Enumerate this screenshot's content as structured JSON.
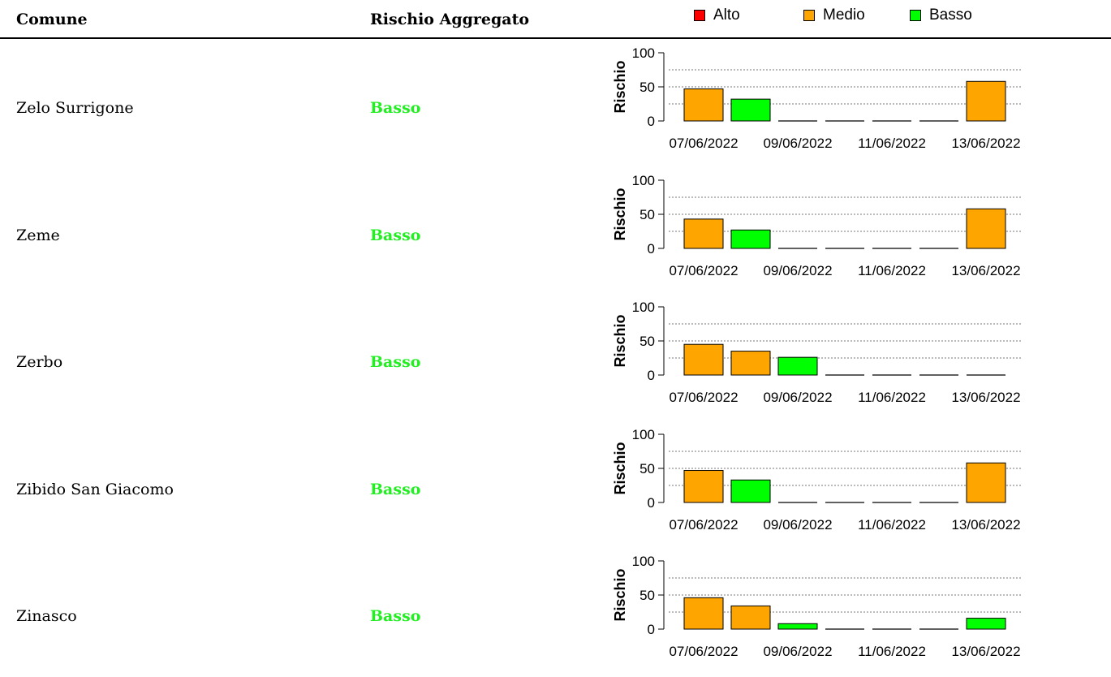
{
  "header": {
    "comune": "Comune",
    "rischio_aggregato": "Rischio Aggregato"
  },
  "legend": [
    {
      "label": "Alto",
      "color": "#ff0000"
    },
    {
      "label": "Medio",
      "color": "#ffa500"
    },
    {
      "label": "Basso",
      "color": "#00ff00"
    }
  ],
  "chart_data": [
    {
      "type": "bar",
      "title": "Zelo Surrigone",
      "categories": [
        "07/06/2022",
        "08/06/2022",
        "09/06/2022",
        "10/06/2022",
        "11/06/2022",
        "12/06/2022",
        "13/06/2022"
      ],
      "values": [
        47,
        32,
        0,
        0,
        0,
        0,
        58
      ],
      "colors": [
        "#ffa500",
        "#00ff00",
        "#00ff00",
        "#00ff00",
        "#00ff00",
        "#00ff00",
        "#ffa500"
      ],
      "ylabel": "Rischio",
      "ylim": [
        0,
        100
      ],
      "yticks": [
        0,
        50,
        100
      ],
      "gridlines": [
        25,
        50,
        75
      ],
      "xtick_labels": [
        "07/06/2022",
        "09/06/2022",
        "11/06/2022",
        "13/06/2022"
      ]
    },
    {
      "type": "bar",
      "title": "Zeme",
      "categories": [
        "07/06/2022",
        "08/06/2022",
        "09/06/2022",
        "10/06/2022",
        "11/06/2022",
        "12/06/2022",
        "13/06/2022"
      ],
      "values": [
        43,
        27,
        0,
        0,
        0,
        0,
        58
      ],
      "colors": [
        "#ffa500",
        "#00ff00",
        "#00ff00",
        "#00ff00",
        "#00ff00",
        "#00ff00",
        "#ffa500"
      ],
      "ylabel": "Rischio",
      "ylim": [
        0,
        100
      ],
      "yticks": [
        0,
        50,
        100
      ],
      "gridlines": [
        25,
        50,
        75
      ],
      "xtick_labels": [
        "07/06/2022",
        "09/06/2022",
        "11/06/2022",
        "13/06/2022"
      ]
    },
    {
      "type": "bar",
      "title": "Zerbo",
      "categories": [
        "07/06/2022",
        "08/06/2022",
        "09/06/2022",
        "10/06/2022",
        "11/06/2022",
        "12/06/2022",
        "13/06/2022"
      ],
      "values": [
        45,
        35,
        26,
        0,
        0,
        0,
        0
      ],
      "colors": [
        "#ffa500",
        "#ffa500",
        "#00ff00",
        "#00ff00",
        "#00ff00",
        "#00ff00",
        "#00ff00"
      ],
      "ylabel": "Rischio",
      "ylim": [
        0,
        100
      ],
      "yticks": [
        0,
        50,
        100
      ],
      "gridlines": [
        25,
        50,
        75
      ],
      "xtick_labels": [
        "07/06/2022",
        "09/06/2022",
        "11/06/2022",
        "13/06/2022"
      ]
    },
    {
      "type": "bar",
      "title": "Zibido San Giacomo",
      "categories": [
        "07/06/2022",
        "08/06/2022",
        "09/06/2022",
        "10/06/2022",
        "11/06/2022",
        "12/06/2022",
        "13/06/2022"
      ],
      "values": [
        47,
        33,
        0,
        0,
        0,
        0,
        58
      ],
      "colors": [
        "#ffa500",
        "#00ff00",
        "#00ff00",
        "#00ff00",
        "#00ff00",
        "#00ff00",
        "#ffa500"
      ],
      "ylabel": "Rischio",
      "ylim": [
        0,
        100
      ],
      "yticks": [
        0,
        50,
        100
      ],
      "gridlines": [
        25,
        50,
        75
      ],
      "xtick_labels": [
        "07/06/2022",
        "09/06/2022",
        "11/06/2022",
        "13/06/2022"
      ]
    },
    {
      "type": "bar",
      "title": "Zinasco",
      "categories": [
        "07/06/2022",
        "08/06/2022",
        "09/06/2022",
        "10/06/2022",
        "11/06/2022",
        "12/06/2022",
        "13/06/2022"
      ],
      "values": [
        46,
        34,
        8,
        0,
        0,
        0,
        16
      ],
      "colors": [
        "#ffa500",
        "#ffa500",
        "#00ff00",
        "#00ff00",
        "#00ff00",
        "#00ff00",
        "#00ff00"
      ],
      "ylabel": "Rischio",
      "ylim": [
        0,
        100
      ],
      "yticks": [
        0,
        50,
        100
      ],
      "gridlines": [
        25,
        50,
        75
      ],
      "xtick_labels": [
        "07/06/2022",
        "09/06/2022",
        "11/06/2022",
        "13/06/2022"
      ]
    }
  ],
  "rows": [
    {
      "comune": "Zelo Surrigone",
      "rischio": "Basso",
      "rischio_color": "#22ee22"
    },
    {
      "comune": "Zeme",
      "rischio": "Basso",
      "rischio_color": "#22ee22"
    },
    {
      "comune": "Zerbo",
      "rischio": "Basso",
      "rischio_color": "#22ee22"
    },
    {
      "comune": "Zibido San Giacomo",
      "rischio": "Basso",
      "rischio_color": "#22ee22"
    },
    {
      "comune": "Zinasco",
      "rischio": "Basso",
      "rischio_color": "#22ee22"
    }
  ]
}
